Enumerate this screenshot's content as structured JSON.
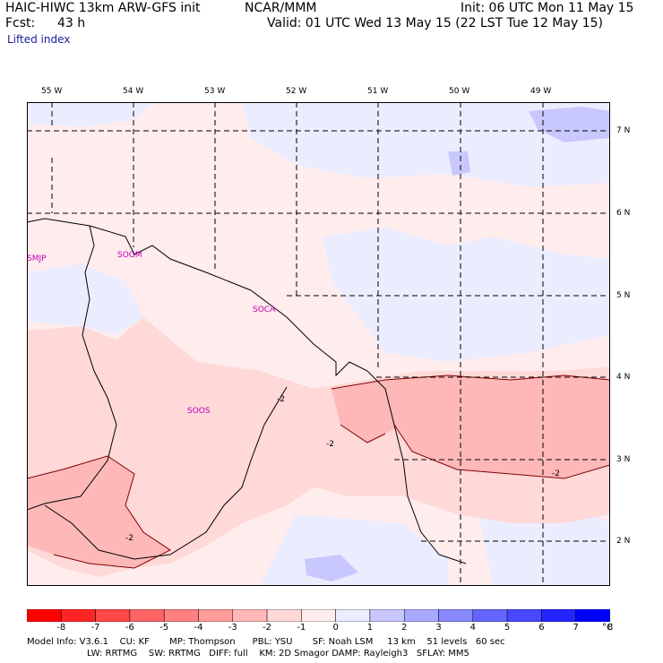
{
  "header": {
    "model": "HAIC-HIWC 13km ARW-GFS init",
    "org": "NCAR/MMM",
    "fcst_label": "Fcst:",
    "fcst_value": "43 h",
    "init": "Init: 06 UTC Mon 11 May 15",
    "valid": "Valid: 01 UTC Wed 13 May 15 (22 LST Tue 12 May 15)",
    "field": "Lifted index"
  },
  "map": {
    "lon_labels": [
      "55 W",
      "54 W",
      "53 W",
      "52 W",
      "51 W",
      "50 W",
      "49 W"
    ],
    "lat_labels": [
      "7 N",
      "6 N",
      "5 N",
      "4 N",
      "3 N",
      "2 N"
    ],
    "stations": [
      "SMJP",
      "SOGM",
      "SOCA",
      "SOOS"
    ],
    "contour_labels": [
      "-2",
      "-2",
      "-2",
      "-2"
    ]
  },
  "colorbar": {
    "ticks": [
      "-8",
      "-7",
      "-6",
      "-5",
      "-4",
      "-3",
      "-2",
      "-1",
      "0",
      "1",
      "2",
      "3",
      "4",
      "5",
      "6",
      "7",
      "8"
    ],
    "unit": "°C",
    "colors": [
      "#ff0000",
      "#ff2424",
      "#ff4848",
      "#ff6464",
      "#ff8080",
      "#ff9c9c",
      "#ffb8b8",
      "#ffd8d8",
      "#ffecec",
      "#ececff",
      "#c8c8ff",
      "#a8a8ff",
      "#8888ff",
      "#6464ff",
      "#4848ff",
      "#2424ff",
      "#0000ff"
    ]
  },
  "model_info": {
    "line1": "Model Info: V3.6.1    CU: KF       MP: Thompson      PBL: YSU       SF: Noah LSM     13 km    51 levels   60 sec",
    "line2": "LW: RRTMG    SW: RRTMG   DIFF: full    KM: 2D Smagor DAMP: Rayleigh3   SFLAY: MM5"
  }
}
